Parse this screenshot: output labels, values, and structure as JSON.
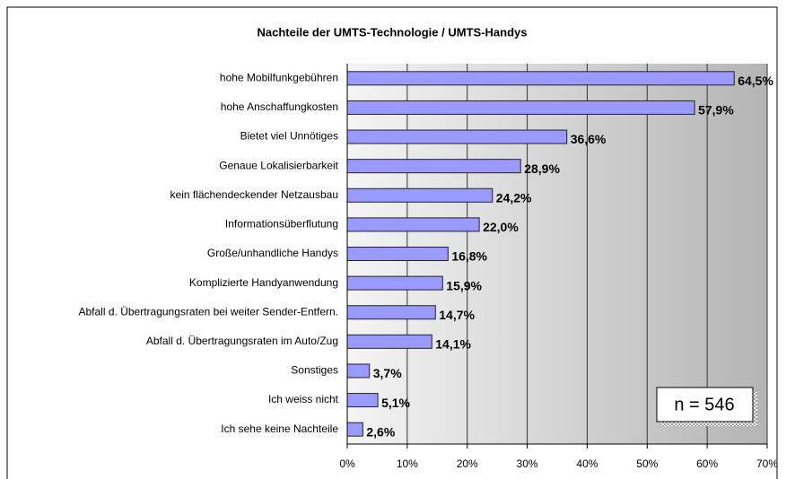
{
  "chart_data": {
    "type": "barh",
    "title": "Nachteile der UMTS-Technologie / UMTS-Handys",
    "categories": [
      "hohe Mobilfunkgebühren",
      "hohe Anschaffungkosten",
      "Bietet viel Unnötiges",
      "Genaue Lokalisierbarkeit",
      "kein flächendeckender Netzausbau",
      "Informationsüberflutung",
      "Große/unhandliche Handys",
      "Komplizierte Handyanwendung",
      "Abfall d. Übertragungsraten bei weiter Sender-Entfern.",
      "Abfall d. Übertragungsraten im Auto/Zug",
      "Sonstiges",
      "Ich weiss nicht",
      "Ich sehe keine Nachteile"
    ],
    "values": [
      64.5,
      57.9,
      36.6,
      28.9,
      24.2,
      22.0,
      16.8,
      15.9,
      14.7,
      14.1,
      3.7,
      5.1,
      2.6
    ],
    "value_labels": [
      "64,5%",
      "57,9%",
      "36,6%",
      "28,9%",
      "24,2%",
      "22,0%",
      "16,8%",
      "15,9%",
      "14,7%",
      "14,1%",
      "3,7%",
      "5,1%",
      "2,6%"
    ],
    "color": "#9999ff",
    "xlim": [
      0,
      70
    ],
    "xticks": [
      {
        "value": 0,
        "label": "0%"
      },
      {
        "value": 10,
        "label": "10%"
      },
      {
        "value": 20,
        "label": "20%"
      },
      {
        "value": 30,
        "label": "30%"
      },
      {
        "value": 40,
        "label": "40%"
      },
      {
        "value": 50,
        "label": "50%"
      },
      {
        "value": 60,
        "label": "60%"
      },
      {
        "value": 70,
        "label": "70%"
      }
    ],
    "grid": true,
    "annotation": "n = 546"
  }
}
